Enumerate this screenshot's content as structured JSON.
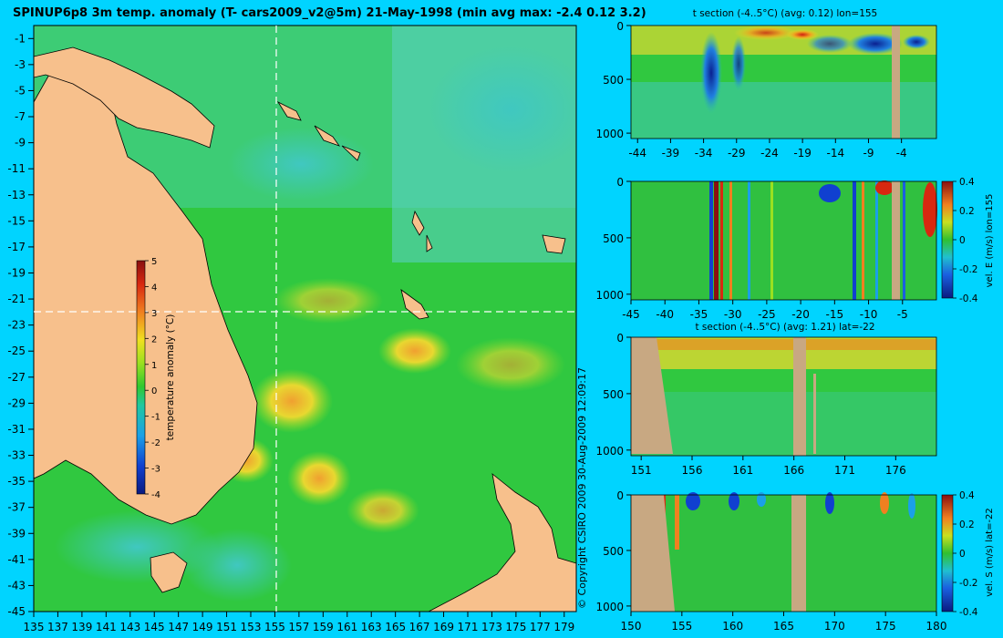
{
  "title": "SPINUP6p8 3m temp. anomaly (T- cars2009_v2@5m) 21-May-1998 (min avg max: -2.4 0.12 3.2)",
  "copyright": "© Copyright CSIRO 2009   30-Aug-2009 12:09:17",
  "colors": {
    "background": "#00d4ff",
    "land": "#f7c08c",
    "section_land": "#c8a882",
    "crosshair": "#ffffff"
  },
  "chart_data": [
    {
      "type": "heatmap",
      "name": "map",
      "title": "SPINUP6p8 3m temp. anomaly (T- cars2009_v2@5m) 21-May-1998 (min avg max: -2.4 0.12 3.2)",
      "xlim": [
        135,
        180
      ],
      "ylim": [
        -45,
        0
      ],
      "x_ticks": [
        "135",
        "137",
        "139",
        "141",
        "143",
        "145",
        "147",
        "149",
        "151",
        "153",
        "155",
        "157",
        "159",
        "161",
        "163",
        "165",
        "167",
        "169",
        "171",
        "173",
        "175",
        "177",
        "179"
      ],
      "y_ticks": [
        "-1",
        "-3",
        "-5",
        "-7",
        "-9",
        "-11",
        "-13",
        "-15",
        "-17",
        "-19",
        "-21",
        "-23",
        "-25",
        "-27",
        "-29",
        "-31",
        "-33",
        "-35",
        "-37",
        "-39",
        "-41",
        "-43",
        "-45"
      ],
      "crosshair": {
        "lon": 155,
        "lat": -22
      },
      "colorbar": {
        "label": "temperature anomaly (°C)",
        "range": [
          -4,
          5
        ],
        "ticks": [
          "5",
          "4",
          "3",
          "2",
          "1",
          "0",
          "-1",
          "-2",
          "-3",
          "-4"
        ]
      }
    },
    {
      "type": "heatmap",
      "name": "t-section-lon155",
      "title": "t section (-4..5°C) (avg: 0.12) lon=155",
      "x_ticks": [
        "-44",
        "-39",
        "-34",
        "-29",
        "-24",
        "-19",
        "-14",
        "-9",
        "-4"
      ],
      "y_ticks": [
        "0",
        "500",
        "1000"
      ]
    },
    {
      "type": "heatmap",
      "name": "vel-e-section-lon155",
      "x_ticks": [
        "-45",
        "-40",
        "-35",
        "-30",
        "-25",
        "-20",
        "-15",
        "-10",
        "-5"
      ],
      "y_ticks": [
        "0",
        "500",
        "1000"
      ],
      "colorbar": {
        "label": "vel. E (m/s) lon=155",
        "range": [
          -0.4,
          0.4
        ],
        "ticks": [
          "0.4",
          "0.2",
          "0",
          "-0.2",
          "-0.4"
        ]
      }
    },
    {
      "type": "heatmap",
      "name": "t-section-lat-22",
      "title": "t section (-4..5°C) (avg: 1.21) lat=-22",
      "x_ticks": [
        "151",
        "156",
        "161",
        "166",
        "171",
        "176"
      ],
      "y_ticks": [
        "0",
        "500",
        "1000"
      ]
    },
    {
      "type": "heatmap",
      "name": "vel-s-section-lat-22",
      "x_ticks": [
        "150",
        "155",
        "160",
        "165",
        "170",
        "175",
        "180"
      ],
      "y_ticks": [
        "0",
        "500",
        "1000"
      ],
      "colorbar": {
        "label": "vel. S (m/s) lat=-22",
        "range": [
          -0.4,
          0.4
        ],
        "ticks": [
          "0.4",
          "0.2",
          "0",
          "-0.2",
          "-0.4"
        ]
      }
    }
  ]
}
